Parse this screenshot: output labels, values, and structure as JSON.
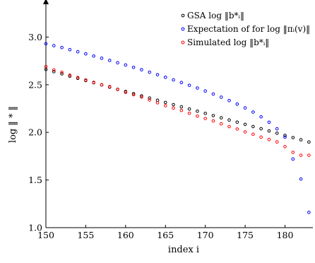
{
  "chart_data": {
    "type": "scatter",
    "title": "",
    "xlabel": "index i",
    "ylabel": "log ‖ * ‖",
    "xlim": [
      150,
      183.5
    ],
    "ylim": [
      1.0,
      3.3
    ],
    "xticks": [
      150,
      155,
      160,
      165,
      170,
      175,
      180
    ],
    "yticks": [
      1.0,
      1.5,
      2.0,
      2.5,
      3.0
    ],
    "xtick_labels": [
      "150",
      "155",
      "160",
      "165",
      "170",
      "175",
      "180"
    ],
    "ytick_labels": [
      "1.0",
      "1.5",
      "2.0",
      "2.5",
      "3.0"
    ],
    "grid": false,
    "legend_position": "top-right",
    "series": [
      {
        "name": "GSA log ‖b*ᵢ‖",
        "color": "#000000",
        "x": [
          150,
          151,
          152,
          153,
          154,
          155,
          156,
          157,
          158,
          159,
          160,
          161,
          162,
          163,
          164,
          165,
          166,
          167,
          168,
          169,
          170,
          171,
          172,
          173,
          174,
          175,
          176,
          177,
          178,
          179,
          180,
          181,
          182,
          183
        ],
        "y": [
          2.66,
          2.637,
          2.614,
          2.59,
          2.567,
          2.544,
          2.521,
          2.498,
          2.475,
          2.452,
          2.429,
          2.406,
          2.383,
          2.36,
          2.337,
          2.314,
          2.291,
          2.268,
          2.245,
          2.222,
          2.199,
          2.176,
          2.153,
          2.13,
          2.107,
          2.084,
          2.061,
          2.038,
          2.015,
          1.991,
          1.968,
          1.945,
          1.922,
          1.899
        ]
      },
      {
        "name": "Expectation of for log ‖πᵢ(v)‖",
        "color": "#0000ff",
        "x": [
          150,
          151,
          152,
          153,
          154,
          155,
          156,
          157,
          158,
          159,
          160,
          161,
          162,
          163,
          164,
          165,
          166,
          167,
          168,
          169,
          170,
          171,
          172,
          173,
          174,
          175,
          176,
          177,
          178,
          179,
          180,
          181,
          182,
          183
        ],
        "y": [
          2.93,
          2.91,
          2.89,
          2.868,
          2.846,
          2.824,
          2.801,
          2.778,
          2.755,
          2.731,
          2.707,
          2.682,
          2.657,
          2.631,
          2.605,
          2.578,
          2.551,
          2.523,
          2.494,
          2.465,
          2.434,
          2.402,
          2.369,
          2.334,
          2.297,
          2.257,
          2.213,
          2.163,
          2.106,
          2.037,
          1.95,
          1.72,
          1.51,
          1.16
        ]
      },
      {
        "name": "Simulated log ‖b*ᵢ‖",
        "color": "#ff0000",
        "x": [
          150,
          151,
          152,
          153,
          154,
          155,
          156,
          157,
          158,
          159,
          160,
          161,
          162,
          163,
          164,
          165,
          166,
          167,
          168,
          169,
          170,
          171,
          172,
          173,
          174,
          175,
          176,
          177,
          178,
          179,
          180,
          181,
          182,
          183
        ],
        "y": [
          2.69,
          2.655,
          2.63,
          2.6,
          2.575,
          2.55,
          2.525,
          2.5,
          2.48,
          2.45,
          2.42,
          2.395,
          2.37,
          2.34,
          2.31,
          2.28,
          2.255,
          2.23,
          2.2,
          2.17,
          2.145,
          2.12,
          2.09,
          2.06,
          2.035,
          2.005,
          1.98,
          1.95,
          1.925,
          1.9,
          1.85,
          1.79,
          1.76,
          1.76
        ]
      }
    ]
  }
}
